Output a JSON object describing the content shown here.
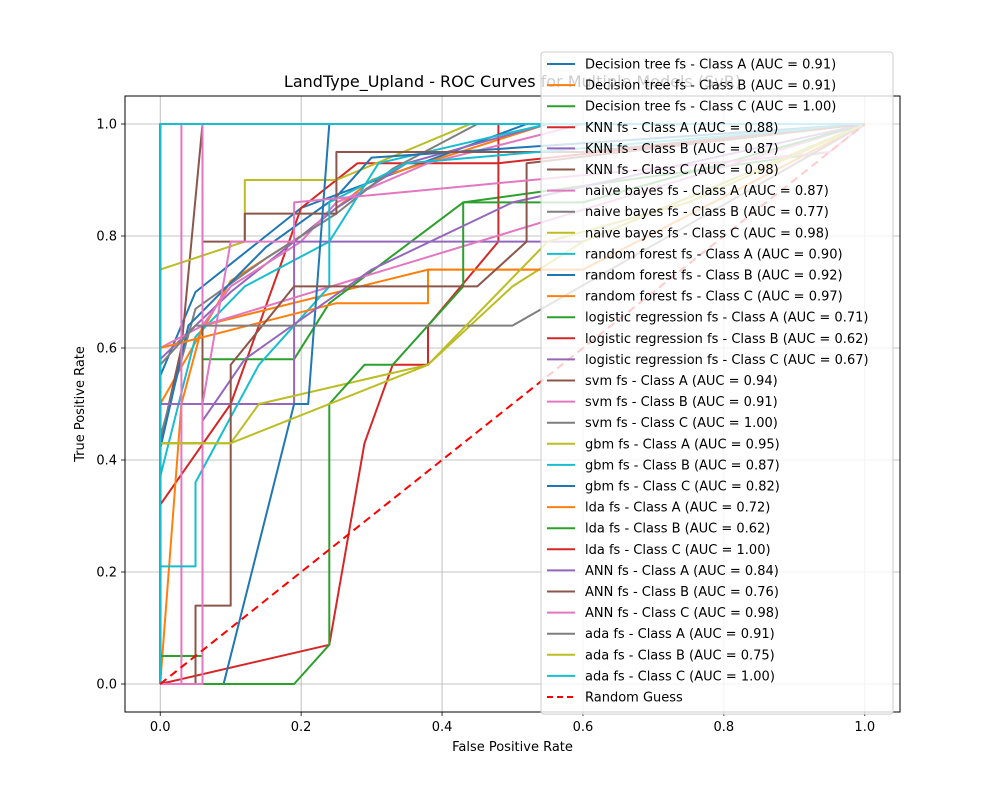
{
  "chart_data": {
    "type": "line",
    "title": "LandType_Upland - ROC Curves for Multiple Models (SvR)",
    "xlabel": "False Positive Rate",
    "ylabel": "True Positive Rate",
    "xlim": [
      -0.05,
      1.05
    ],
    "ylim": [
      -0.05,
      1.05
    ],
    "xticks": [
      "0.0",
      "0.2",
      "0.4",
      "0.6",
      "0.8",
      "1.0"
    ],
    "yticks": [
      "0.0",
      "0.2",
      "0.4",
      "0.6",
      "0.8",
      "1.0"
    ],
    "grid": true,
    "legend_position": "upper-right",
    "series": [
      {
        "name": "Decision tree fs - Class A (AUC = 0.91)",
        "color": "#1f77b4",
        "x": [
          0,
          0,
          0.05,
          0.2,
          0.52,
          1
        ],
        "y": [
          0,
          0.55,
          0.7,
          0.85,
          1,
          1
        ]
      },
      {
        "name": "Decision tree fs - Class B (AUC = 0.91)",
        "color": "#ff7f0e",
        "x": [
          0,
          0,
          0.1,
          0.2,
          0.3,
          0.55,
          1
        ],
        "y": [
          0,
          0.5,
          0.72,
          0.8,
          0.9,
          1,
          1
        ]
      },
      {
        "name": "Decision tree fs - Class C (AUC = 1.00)",
        "color": "#2ca02c",
        "x": [
          0,
          0,
          1
        ],
        "y": [
          0,
          1,
          1
        ]
      },
      {
        "name": "KNN fs - Class A (AUC = 0.88)",
        "color": "#d62728",
        "x": [
          0,
          0.1,
          0.2,
          0.28,
          0.48,
          0.48,
          1
        ],
        "y": [
          0.32,
          0.5,
          0.85,
          0.93,
          0.93,
          1,
          1
        ]
      },
      {
        "name": "KNN fs - Class B (AUC = 0.87)",
        "color": "#9467bd",
        "x": [
          0,
          0.1,
          0.25,
          0.35,
          0.55,
          1
        ],
        "y": [
          0.58,
          0.7,
          0.85,
          0.93,
          1,
          1
        ]
      },
      {
        "name": "KNN fs - Class C (AUC = 0.98)",
        "color": "#8c564b",
        "x": [
          0,
          0.03,
          0.06,
          1
        ],
        "y": [
          0.43,
          0.6,
          1,
          1
        ]
      },
      {
        "name": "naive bayes fs - Class A (AUC = 0.87)",
        "color": "#e377c2",
        "x": [
          0,
          0.06,
          0.1,
          0.2,
          0.25,
          0.38,
          0.6,
          1
        ],
        "y": [
          0.6,
          0.64,
          0.71,
          0.79,
          0.86,
          0.93,
          1,
          1
        ]
      },
      {
        "name": "naive bayes fs - Class B (AUC = 0.77)",
        "color": "#7f7f7f",
        "x": [
          0,
          0.05,
          0.15,
          0.25,
          0.33,
          0.45,
          1
        ],
        "y": [
          0.44,
          0.67,
          0.76,
          0.84,
          0.92,
          1,
          1
        ]
      },
      {
        "name": "naive bayes fs - Class C (AUC = 0.98)",
        "color": "#bcbd22",
        "x": [
          0,
          0.12,
          0.12,
          0.25,
          0.44,
          1
        ],
        "y": [
          0.74,
          0.79,
          0.9,
          0.9,
          1,
          1
        ]
      },
      {
        "name": "random forest fs - Class A (AUC = 0.90)",
        "color": "#17becf",
        "x": [
          0,
          0.05,
          0.12,
          0.24,
          0.31,
          0.55,
          1
        ],
        "y": [
          0.37,
          0.62,
          0.71,
          0.79,
          0.93,
          1,
          1
        ]
      },
      {
        "name": "random forest fs - Class B (AUC = 0.92)",
        "color": "#1f77b4",
        "x": [
          0,
          0.04,
          0.15,
          0.25,
          0.3,
          1
        ],
        "y": [
          0.42,
          0.64,
          0.78,
          0.87,
          0.94,
          1
        ]
      },
      {
        "name": "random forest fs - Class C (AUC = 0.97)",
        "color": "#ff7f0e",
        "x": [
          0,
          0.03,
          0.06,
          0.38,
          0.6,
          1
        ],
        "y": [
          0,
          0.5,
          0.64,
          0.74,
          0.74,
          1
        ]
      },
      {
        "name": "logistic regression fs - Class A (AUC = 0.71)",
        "color": "#2ca02c",
        "x": [
          0,
          0.06,
          0.06,
          0.19,
          0.24,
          0.43,
          0.43,
          0.95,
          1
        ],
        "y": [
          0.05,
          0.05,
          0.58,
          0.58,
          0.68,
          0.86,
          0.86,
          0.95,
          1
        ]
      },
      {
        "name": "logistic regression fs - Class B (AUC = 0.62)",
        "color": "#d62728",
        "x": [
          0,
          0.24,
          0.29,
          0.29,
          0.33,
          0.38,
          0.38,
          0.48,
          0.48,
          1
        ],
        "y": [
          0,
          0.07,
          0.43,
          0.43,
          0.57,
          0.57,
          0.64,
          0.79,
          0.93,
          1
        ]
      },
      {
        "name": "logistic regression fs - Class C (AUC = 0.67)",
        "color": "#9467bd",
        "x": [
          0,
          0,
          0.19,
          0.19,
          0.6,
          1
        ],
        "y": [
          0,
          0.5,
          0.5,
          0.79,
          0.79,
          1
        ]
      },
      {
        "name": "svm fs - Class A (AUC = 0.94)",
        "color": "#8c564b",
        "x": [
          0,
          0.06,
          0.06,
          0.12,
          0.12,
          0.25,
          0.25,
          0.6,
          1
        ],
        "y": [
          0.43,
          0.43,
          0.79,
          0.79,
          0.84,
          0.84,
          0.95,
          0.95,
          1
        ]
      },
      {
        "name": "svm fs - Class B (AUC = 0.91)",
        "color": "#e377c2",
        "x": [
          0,
          0.03,
          0.03,
          0.06,
          0.06,
          1
        ],
        "y": [
          0,
          0,
          1,
          1,
          0.64,
          1
        ]
      },
      {
        "name": "svm fs - Class C (AUC = 1.00)",
        "color": "#7f7f7f",
        "x": [
          0,
          0,
          1
        ],
        "y": [
          0,
          1,
          1
        ]
      },
      {
        "name": "gbm fs - Class A (AUC = 0.95)",
        "color": "#bcbd22",
        "x": [
          0,
          0.1,
          0.14,
          0.38,
          0.5,
          0.6,
          1
        ],
        "y": [
          0.43,
          0.43,
          0.5,
          0.57,
          0.71,
          0.79,
          1
        ]
      },
      {
        "name": "gbm fs - Class B (AUC = 0.87)",
        "color": "#17becf",
        "x": [
          0,
          0.05,
          0.05,
          0.14,
          0.24,
          0.24,
          0.35,
          1
        ],
        "y": [
          0.21,
          0.21,
          0.36,
          0.57,
          0.71,
          0.86,
          0.93,
          1
        ]
      },
      {
        "name": "gbm fs - Class C (AUC = 0.82)",
        "color": "#1f77b4",
        "x": [
          0,
          0.09,
          0.19,
          0.21,
          0.24,
          1
        ],
        "y": [
          0,
          0,
          0.5,
          0.5,
          1,
          1
        ]
      },
      {
        "name": "lda fs - Class A (AUC = 0.72)",
        "color": "#ff7f0e",
        "x": [
          0,
          0.25,
          0.38,
          0.38,
          0.6,
          1
        ],
        "y": [
          0.6,
          0.68,
          0.68,
          0.74,
          0.74,
          1
        ]
      },
      {
        "name": "lda fs - Class B (AUC = 0.62)",
        "color": "#2ca02c",
        "x": [
          0,
          0.19,
          0.24,
          0.24,
          0.29,
          0.33,
          0.43,
          0.43,
          0.6,
          1
        ],
        "y": [
          0,
          0,
          0.07,
          0.5,
          0.57,
          0.57,
          0.71,
          0.86,
          0.86,
          1
        ]
      },
      {
        "name": "lda fs - Class C (AUC = 1.00)",
        "color": "#d62728",
        "x": [
          0,
          0,
          1
        ],
        "y": [
          0,
          1,
          1
        ]
      },
      {
        "name": "ANN fs - Class A (AUC = 0.84)",
        "color": "#9467bd",
        "x": [
          0,
          0.06,
          0.06,
          0.12,
          0.3,
          0.5,
          1
        ],
        "y": [
          0,
          0,
          0.47,
          0.58,
          0.74,
          0.86,
          1
        ]
      },
      {
        "name": "ANN fs - Class B (AUC = 0.76)",
        "color": "#8c564b",
        "x": [
          0,
          0.05,
          0.05,
          0.1,
          0.1,
          0.19,
          0.45,
          0.52,
          0.52,
          1
        ],
        "y": [
          0,
          0,
          0.14,
          0.14,
          0.57,
          0.71,
          0.71,
          0.79,
          0.93,
          1
        ]
      },
      {
        "name": "ANN fs - Class C (AUC = 0.98)",
        "color": "#e377c2",
        "x": [
          0,
          0.06,
          0.06,
          0.1,
          0.19,
          0.19,
          0.95,
          1
        ],
        "y": [
          0,
          0,
          0.5,
          0.79,
          0.79,
          0.86,
          0.95,
          1
        ]
      },
      {
        "name": "ada fs - Class A (AUC = 0.91)",
        "color": "#7f7f7f",
        "x": [
          0,
          0.05,
          0.19,
          0.38,
          0.5,
          1
        ],
        "y": [
          0.57,
          0.64,
          0.64,
          0.64,
          0.64,
          1
        ]
      },
      {
        "name": "ada fs - Class B (AUC = 0.75)",
        "color": "#bcbd22",
        "x": [
          0,
          0.1,
          0.38,
          0.55,
          0.75,
          1
        ],
        "y": [
          0.43,
          0.43,
          0.57,
          0.79,
          0.86,
          1
        ]
      },
      {
        "name": "ada fs - Class C (AUC = 1.00)",
        "color": "#17becf",
        "x": [
          0,
          0,
          1
        ],
        "y": [
          0,
          1,
          1
        ]
      },
      {
        "name": "Random Guess",
        "color": "#ff0000",
        "dashed": true,
        "x": [
          0,
          1
        ],
        "y": [
          0,
          1
        ]
      }
    ]
  }
}
